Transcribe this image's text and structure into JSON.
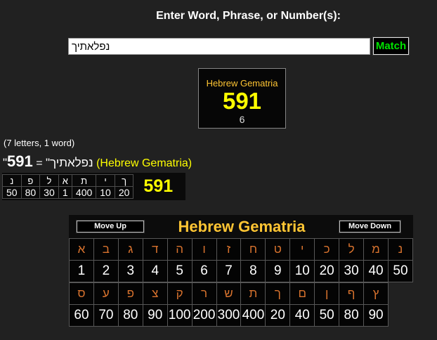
{
  "colors": {
    "page-bg": "#212121",
    "panel-bg": "#0a0a0a",
    "cell-bg": "#040404",
    "cell-border": "#575757",
    "gold": "#ffc533",
    "yellow": "#ffff00",
    "orange": "#d9732e",
    "green": "#00e400"
  },
  "header": {
    "title": "Enter Word, Phrase, or Number(s):"
  },
  "search": {
    "value": "נפלאתיך",
    "match_label": "Match"
  },
  "result_box": {
    "label": "Hebrew Gematria",
    "value": "591",
    "sub_value": "6"
  },
  "summary": {
    "letters_info": "(7 letters, 1 word)",
    "quoted_word": "\"נפלאתיך\"",
    "equals": "=",
    "value": "591",
    "system_label": "(Hebrew Gematria)"
  },
  "breakdown": {
    "letters": [
      "נ",
      "פ",
      "ל",
      "א",
      "ת",
      "י",
      "ך"
    ],
    "values": [
      "50",
      "80",
      "30",
      "1",
      "400",
      "10",
      "20"
    ],
    "total": "591"
  },
  "gematria_table": {
    "move_up_label": "Move Up",
    "title": "Hebrew Gematria",
    "move_down_label": "Move Down",
    "row1_letters": [
      "א",
      "ב",
      "ג",
      "ד",
      "ה",
      "ו",
      "ז",
      "ח",
      "ט",
      "י",
      "כ",
      "ל",
      "מ",
      "נ"
    ],
    "row1_values": [
      "1",
      "2",
      "3",
      "4",
      "5",
      "6",
      "7",
      "8",
      "9",
      "10",
      "20",
      "30",
      "40",
      "50"
    ],
    "row2_letters": [
      "ס",
      "ע",
      "פ",
      "צ",
      "ק",
      "ר",
      "ש",
      "ת",
      "ך",
      "ם",
      "ן",
      "ף",
      "ץ"
    ],
    "row2_values": [
      "60",
      "70",
      "80",
      "90",
      "100",
      "200",
      "300",
      "400",
      "20",
      "40",
      "50",
      "80",
      "90"
    ]
  }
}
